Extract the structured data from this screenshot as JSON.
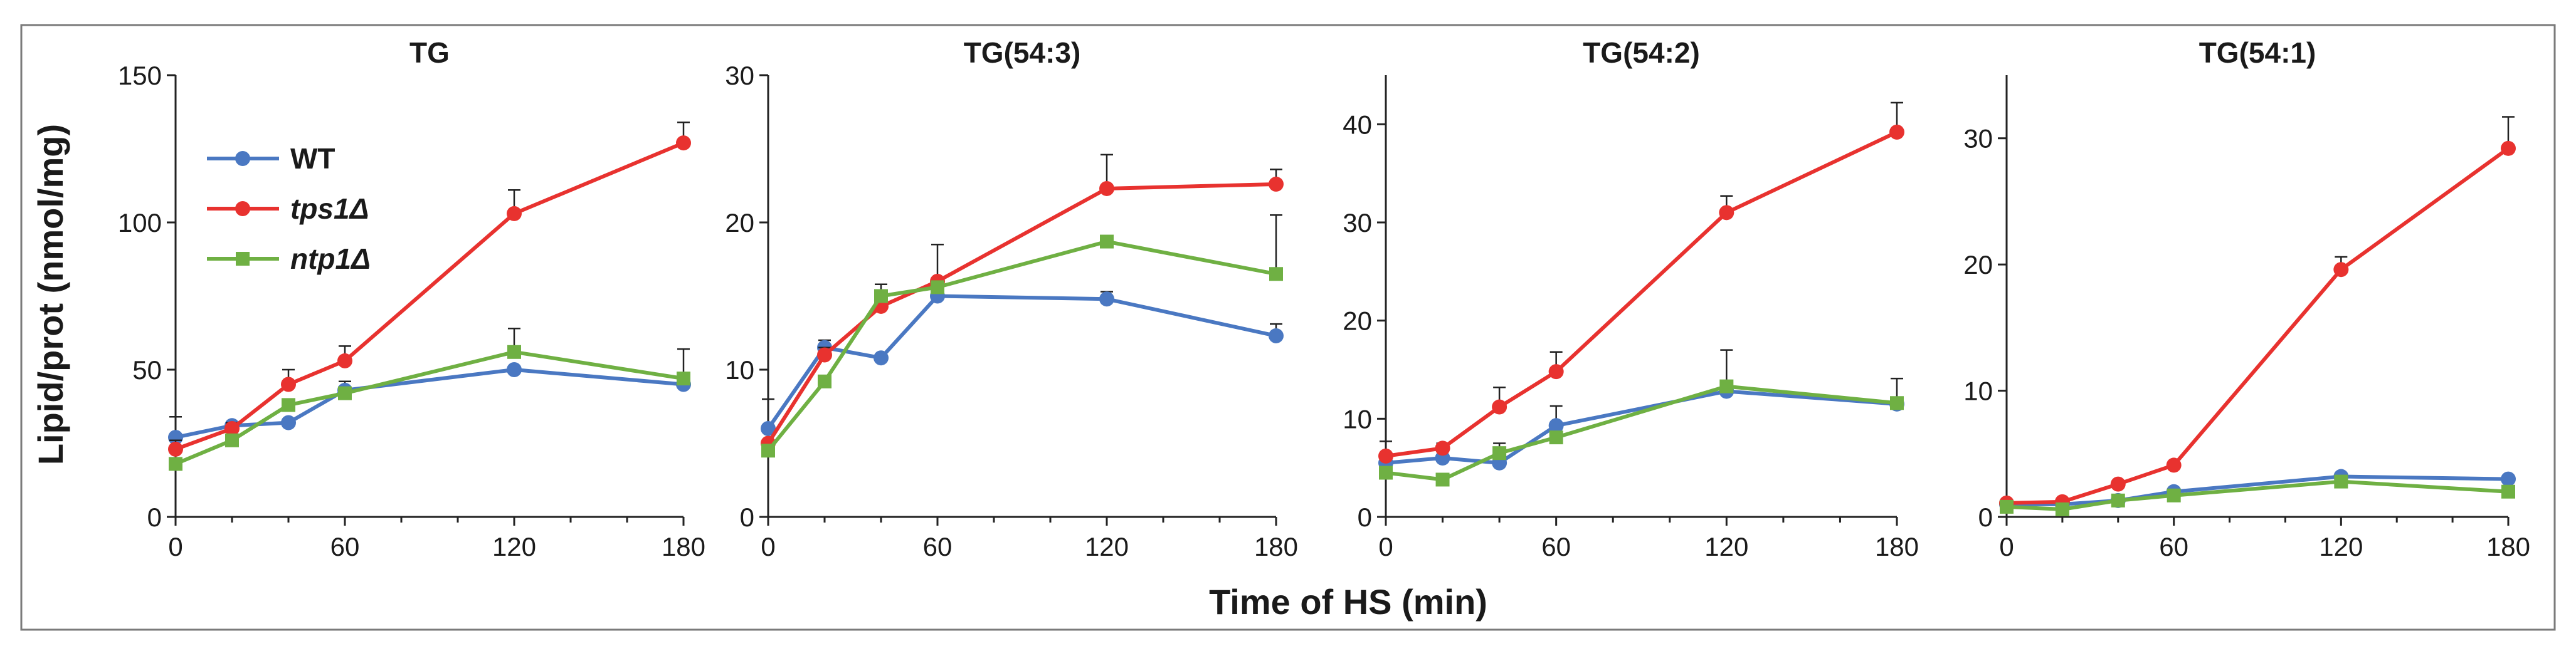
{
  "figure": {
    "ylabel": "Lipid/prot (nmol/mg)",
    "xlabel": "Time of HS (min)"
  },
  "legend": {
    "placement": "top-left of first panel",
    "items": [
      {
        "label": "WT",
        "color": "#4a78c2"
      },
      {
        "label": "tps1Δ",
        "color": "#e8322f"
      },
      {
        "label": "ntp1Δ",
        "color": "#6fb043"
      }
    ]
  },
  "chart_data": [
    {
      "type": "line",
      "title": "TG",
      "x": [
        0,
        20,
        40,
        60,
        120,
        180
      ],
      "xticks": [
        "0",
        "60",
        "120",
        "180"
      ],
      "xlim": [
        0,
        180
      ],
      "ylim": [
        0,
        150
      ],
      "yticks": [
        "0",
        "50",
        "100",
        "150"
      ],
      "series": [
        {
          "name": "WT",
          "color": "#4a78c2",
          "values": [
            27,
            31,
            32,
            43,
            50,
            45
          ],
          "err": [
            7,
            0,
            0,
            3,
            0,
            0
          ]
        },
        {
          "name": "tps1Δ",
          "color": "#e8322f",
          "values": [
            23,
            30,
            45,
            53,
            103,
            127
          ],
          "err": [
            3,
            2,
            5,
            5,
            8,
            7
          ]
        },
        {
          "name": "ntp1Δ",
          "color": "#6fb043",
          "values": [
            18,
            26,
            38,
            42,
            56,
            47
          ],
          "err": [
            0,
            0,
            0,
            0,
            8,
            10
          ]
        }
      ]
    },
    {
      "type": "line",
      "title": "TG(54:3)",
      "x": [
        0,
        20,
        40,
        60,
        120,
        180
      ],
      "xticks": [
        "0",
        "60",
        "120",
        "180"
      ],
      "xlim": [
        0,
        180
      ],
      "ylim": [
        0,
        30
      ],
      "yticks": [
        "0",
        "10",
        "20",
        "30"
      ],
      "series": [
        {
          "name": "WT",
          "color": "#4a78c2",
          "values": [
            6,
            11.5,
            10.8,
            15,
            14.8,
            12.3
          ],
          "err": [
            2,
            0.5,
            0,
            0,
            0.5,
            0.8
          ]
        },
        {
          "name": "tps1Δ",
          "color": "#e8322f",
          "values": [
            5,
            11,
            14.3,
            16,
            22.3,
            22.6
          ],
          "err": [
            0,
            0.5,
            1.5,
            2.5,
            2.3,
            1
          ]
        },
        {
          "name": "ntp1Δ",
          "color": "#6fb043",
          "values": [
            4.5,
            9.2,
            15,
            15.6,
            18.7,
            16.5
          ],
          "err": [
            0,
            0,
            0,
            0,
            0,
            4
          ]
        }
      ]
    },
    {
      "type": "line",
      "title": "TG(54:2)",
      "x": [
        0,
        20,
        40,
        60,
        120,
        180
      ],
      "xticks": [
        "0",
        "60",
        "120",
        "180"
      ],
      "xlim": [
        0,
        180
      ],
      "ylim": [
        0,
        45
      ],
      "yticks": [
        "0",
        "10",
        "20",
        "30",
        "40"
      ],
      "series": [
        {
          "name": "WT",
          "color": "#4a78c2",
          "values": [
            5.5,
            6,
            5.5,
            9.3,
            12.8,
            11.5
          ],
          "err": [
            0,
            0,
            0,
            2,
            0,
            0
          ]
        },
        {
          "name": "tps1Δ",
          "color": "#e8322f",
          "values": [
            6.2,
            7,
            11.2,
            14.8,
            31,
            39.2
          ],
          "err": [
            1.5,
            0.5,
            2,
            2,
            1.7,
            3
          ]
        },
        {
          "name": "ntp1Δ",
          "color": "#6fb043",
          "values": [
            4.5,
            3.8,
            6.5,
            8.1,
            13.3,
            11.6
          ],
          "err": [
            0,
            0,
            1,
            0,
            3.7,
            2.5
          ]
        }
      ]
    },
    {
      "type": "line",
      "title": "TG(54:1)",
      "x": [
        0,
        20,
        40,
        60,
        120,
        180
      ],
      "xticks": [
        "0",
        "60",
        "120",
        "180"
      ],
      "xlim": [
        0,
        180
      ],
      "ylim": [
        0,
        35
      ],
      "yticks": [
        "0",
        "10",
        "20",
        "30"
      ],
      "series": [
        {
          "name": "WT",
          "color": "#4a78c2",
          "values": [
            1,
            1,
            1.3,
            2,
            3.2,
            3
          ],
          "err": [
            0,
            0,
            0,
            0,
            0,
            0
          ]
        },
        {
          "name": "tps1Δ",
          "color": "#e8322f",
          "values": [
            1.1,
            1.2,
            2.6,
            4.1,
            19.6,
            29.2
          ],
          "err": [
            0,
            0,
            0,
            0,
            1,
            2.5
          ]
        },
        {
          "name": "ntp1Δ",
          "color": "#6fb043",
          "values": [
            0.8,
            0.6,
            1.3,
            1.7,
            2.8,
            2
          ],
          "err": [
            0,
            0,
            0,
            0,
            0,
            0
          ]
        }
      ]
    }
  ]
}
